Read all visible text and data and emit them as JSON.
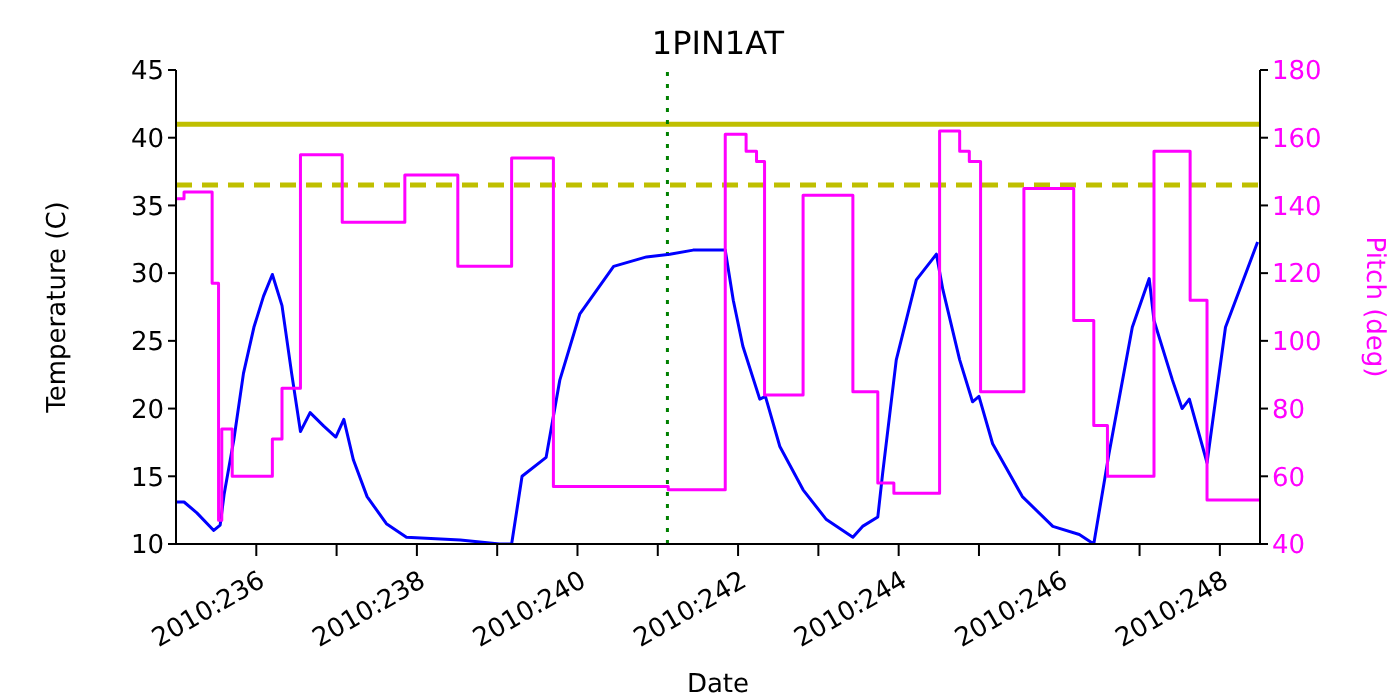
{
  "chart_data": {
    "type": "line",
    "title": "1PIN1AT",
    "xlabel": "Date",
    "ylabel": "Temperature (C)",
    "y2label": "Pitch (deg)",
    "xlim": [
      "2010-08-23",
      "2010-09-05T12:00"
    ],
    "xticks": [
      {
        "value": "2010-08-24",
        "label": "2010:236"
      },
      {
        "value": "2010-08-25",
        "label": null
      },
      {
        "value": "2010-08-26",
        "label": "2010:238"
      },
      {
        "value": "2010-08-27",
        "label": null
      },
      {
        "value": "2010-08-28",
        "label": "2010:240"
      },
      {
        "value": "2010-08-29",
        "label": null
      },
      {
        "value": "2010-08-30",
        "label": "2010:242"
      },
      {
        "value": "2010-08-31",
        "label": null
      },
      {
        "value": "2010-09-01",
        "label": "2010:244"
      },
      {
        "value": "2010-09-02",
        "label": null
      },
      {
        "value": "2010-09-03",
        "label": "2010:246"
      },
      {
        "value": "2010-09-04",
        "label": null
      },
      {
        "value": "2010-09-05",
        "label": "2010:248"
      }
    ],
    "ylim": [
      10,
      45
    ],
    "yticks": [
      10,
      15,
      20,
      25,
      30,
      35,
      40,
      45
    ],
    "y2lim": [
      40,
      180
    ],
    "y2ticks": [
      40,
      60,
      80,
      100,
      120,
      140,
      160,
      180
    ],
    "series": [
      {
        "color": "#0000ff",
        "x": [
          "2010-08-23T00:14",
          "2010-08-23T02:24",
          "2010-08-23T06:14",
          "2010-08-23T11:17",
          "2010-08-23T13:12",
          "2010-08-23T14:24",
          "2010-08-23T17:17",
          "2010-08-23T20:10",
          "2010-08-23T23:17",
          "2010-08-24T02:10",
          "2010-08-24T04:48",
          "2010-08-24T07:41",
          "2010-08-24T10:34",
          "2010-08-24T13:12",
          "2010-08-24T16:05",
          "2010-08-24T20:10",
          "2010-08-24T23:46",
          "2010-08-25T02:10",
          "2010-08-25T05:02",
          "2010-08-25T09:07",
          "2010-08-25T14:53",
          "2010-08-25T20:53",
          "2010-08-26T12:58",
          "2010-08-27T00:43",
          "2010-08-27T04:19",
          "2010-08-27T07:26",
          "2010-08-27T14:38",
          "2010-08-27T18:43",
          "2010-08-28T00:43",
          "2010-08-28T10:48",
          "2010-08-28T20:38",
          "2010-08-29T03:36",
          "2010-08-29T10:34",
          "2010-08-29T20:10",
          "2010-08-29T22:34",
          "2010-08-30T01:26",
          "2010-08-30T06:29",
          "2010-08-30T08:10",
          "2010-08-30T12:29",
          "2010-08-30T19:26",
          "2010-08-31T02:24",
          "2010-08-31T10:19",
          "2010-08-31T13:12",
          "2010-08-31T17:46",
          "2010-08-31T19:12",
          "2010-08-31T23:17",
          "2010-09-01T05:17",
          "2010-09-01T11:17",
          "2010-09-01T13:12",
          "2010-09-01T18:14",
          "2010-09-01T22:05",
          "2010-09-02T00:00",
          "2010-09-02T04:05",
          "2010-09-02T12:58",
          "2010-09-02T22:05",
          "2010-09-03T06:00",
          "2010-09-03T10:19",
          "2010-09-03T14:53",
          "2010-09-03T21:50",
          "2010-09-04T02:53",
          "2010-09-04T04:19",
          "2010-09-04T09:50",
          "2010-09-04T12:43",
          "2010-09-04T14:53",
          "2010-09-04T20:10",
          "2010-09-05T01:41",
          "2010-09-05T11:17"
        ],
        "values": [
          13.1,
          13.1,
          12.3,
          11.0,
          11.4,
          13.7,
          17.7,
          22.6,
          26.0,
          28.3,
          29.9,
          27.6,
          22.6,
          18.3,
          19.7,
          18.7,
          17.9,
          19.2,
          16.2,
          13.5,
          11.5,
          10.5,
          10.3,
          10.0,
          10.0,
          15.0,
          16.4,
          22.1,
          27.0,
          30.5,
          31.2,
          31.4,
          31.7,
          31.7,
          28.0,
          24.6,
          20.7,
          20.9,
          17.2,
          14.0,
          11.8,
          10.5,
          11.3,
          12.0,
          15.2,
          23.6,
          29.5,
          31.4,
          28.8,
          23.6,
          20.5,
          20.9,
          17.4,
          13.5,
          11.3,
          10.7,
          10.0,
          16.7,
          26.0,
          29.6,
          26.5,
          22.1,
          20.0,
          20.7,
          16.0,
          26.0,
          32.3
        ]
      },
      {
        "type": "step",
        "color": "#ff00ff",
        "axis": "y2",
        "x": [
          "2010-08-23T00:00",
          "2010-08-23T02:24",
          "2010-08-23T10:48",
          "2010-08-23T12:43",
          "2010-08-23T13:41",
          "2010-08-23T16:48",
          "2010-08-24T04:48",
          "2010-08-24T07:41",
          "2010-08-24T13:12",
          "2010-08-25T01:41",
          "2010-08-25T20:24",
          "2010-08-26T12:14",
          "2010-08-27T04:19",
          "2010-08-27T16:48",
          "2010-08-29T03:07",
          "2010-08-29T20:10",
          "2010-08-30T02:24",
          "2010-08-30T05:31",
          "2010-08-30T07:55",
          "2010-08-30T19:26",
          "2010-08-31T10:19",
          "2010-08-31T17:46",
          "2010-08-31T22:34",
          "2010-09-01T12:14",
          "2010-09-01T18:14",
          "2010-09-01T21:07",
          "2010-09-02T00:29",
          "2010-09-02T13:26",
          "2010-09-03T04:19",
          "2010-09-03T10:19",
          "2010-09-03T14:24",
          "2010-09-04T04:19",
          "2010-09-04T15:07",
          "2010-09-04T20:10",
          "2010-09-05T12:00"
        ],
        "values": [
          142,
          144,
          117,
          47,
          74,
          60,
          71,
          86,
          155,
          135,
          149,
          122,
          154,
          57,
          56,
          161,
          156,
          153,
          84,
          143,
          85,
          58,
          55,
          162,
          156,
          153,
          85,
          145,
          106,
          75,
          60,
          156,
          112,
          53,
          53
        ]
      }
    ],
    "ref_lines": [
      {
        "axis": "y",
        "value": 41,
        "color": "#bfbf00",
        "line_style": "solid"
      },
      {
        "axis": "y",
        "value": 36.5,
        "color": "#bfbf00",
        "line_style": "dashed"
      },
      {
        "axis": "x",
        "value": "2010-08-29T02:53",
        "color": "#008000",
        "line_style": "dotted"
      }
    ]
  }
}
